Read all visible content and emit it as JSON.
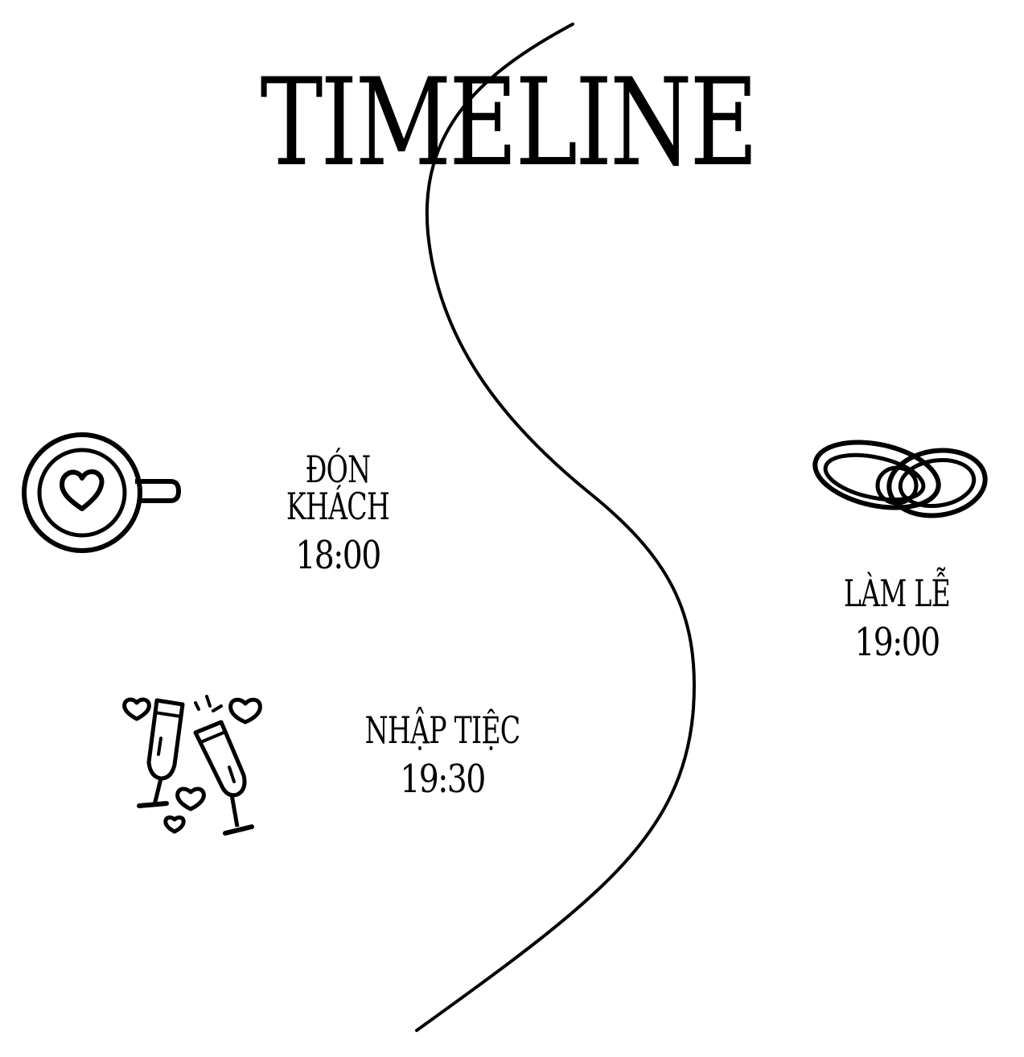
{
  "title": "TIMELINE",
  "events": [
    {
      "name": "ĐÓN KHÁCH",
      "time": "18:00",
      "icon": "coffee-heart-icon"
    },
    {
      "name": "LÀM LỄ",
      "time": "19:00",
      "icon": "wedding-rings-icon"
    },
    {
      "name": "NHẬP TIỆC",
      "time": "19:30",
      "icon": "champagne-toast-icon"
    }
  ],
  "colors": {
    "background": "#ffffff",
    "ink": "#000000"
  }
}
